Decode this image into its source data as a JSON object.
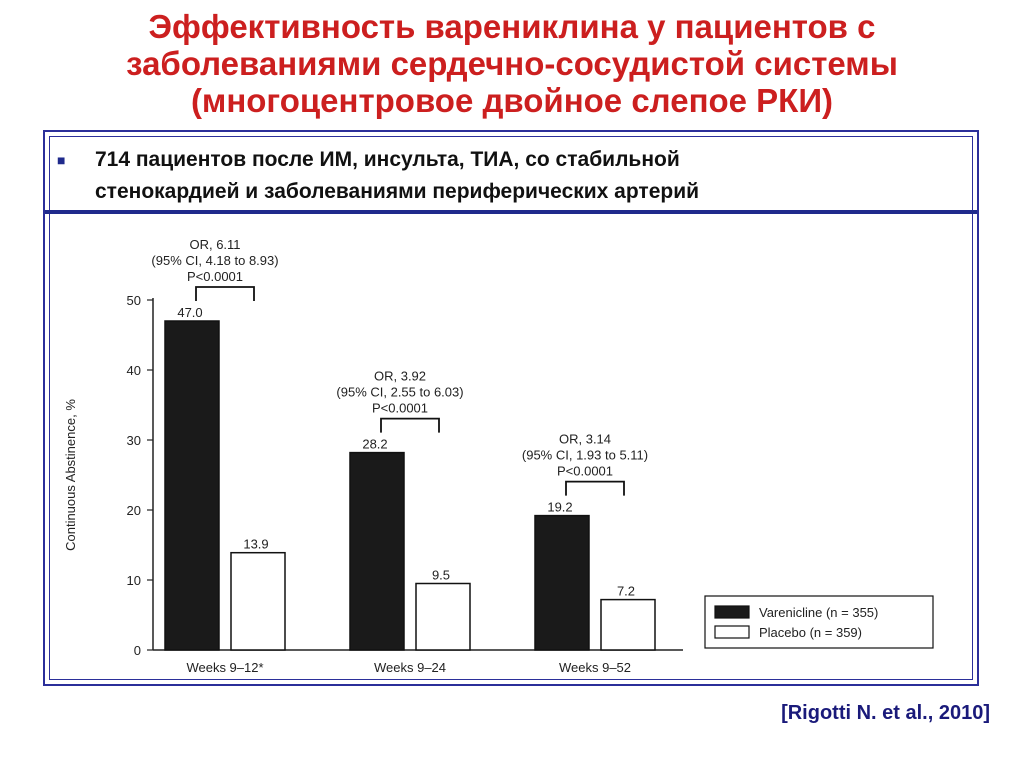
{
  "title_lines": [
    "Эффективность варениклина у пациентов с",
    "заболеваниями сердечно-сосудистой системы",
    "(многоцентровое двойное слепое РКИ)"
  ],
  "bullet": {
    "lines": [
      "714 пациентов после ИМ, инсульта, ТИА, со стабильной",
      "стенокардией и заболеваниями периферических артерий"
    ]
  },
  "citation": "[Rigotti N. et al., 2010]",
  "colors": {
    "title": "#cc1f1f",
    "frame": "#2b2f9a",
    "bar_varenicline": "#1a1a1a",
    "bar_placebo": "#ffffff"
  },
  "chart_data": {
    "type": "bar",
    "title": "",
    "xlabel": "",
    "ylabel": "Continuous Abstinence, %",
    "ylim": [
      0,
      50
    ],
    "yticks": [
      0,
      10,
      20,
      30,
      40,
      50
    ],
    "categories": [
      "Weeks 9–12*",
      "Weeks 9–24",
      "Weeks 9–52"
    ],
    "series": [
      {
        "name": "Varenicline (n = 355)",
        "values": [
          47.0,
          28.2,
          19.2
        ],
        "labels": [
          "47.0",
          "28.2",
          "19.2"
        ]
      },
      {
        "name": "Placebo (n = 359)",
        "values": [
          13.9,
          9.5,
          7.2
        ],
        "labels": [
          "13.9",
          "9.5",
          "7.2"
        ]
      }
    ],
    "annotations": [
      {
        "lines": [
          "OR, 6.11",
          "(95% CI, 4.18 to 8.93)",
          "P<0.0001"
        ]
      },
      {
        "lines": [
          "OR, 3.92",
          "(95% CI, 2.55 to 6.03)",
          "P<0.0001"
        ]
      },
      {
        "lines": [
          "OR, 3.14",
          "(95% CI, 1.93 to 5.11)",
          "P<0.0001"
        ]
      }
    ],
    "legend_position": "bottom-right",
    "grid": false
  }
}
